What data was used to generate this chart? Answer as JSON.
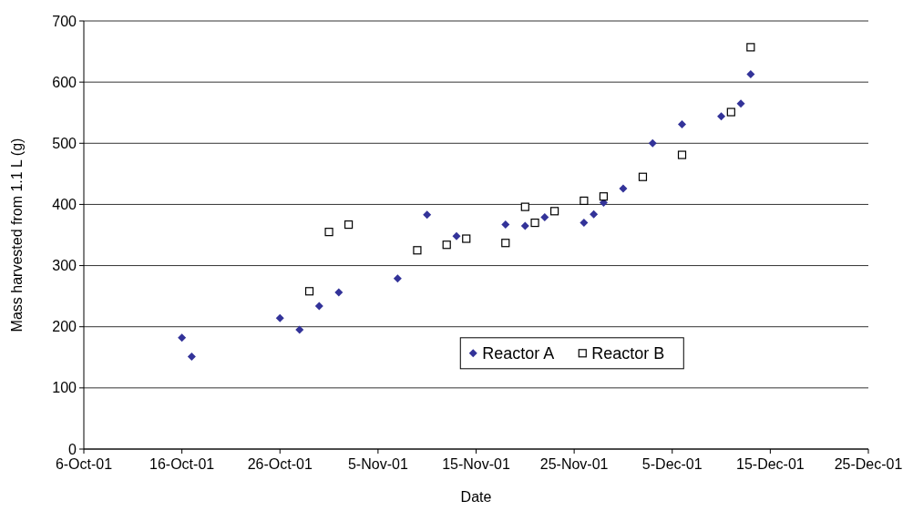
{
  "chart_data": {
    "type": "scatter",
    "xlabel": "Date",
    "ylabel": "Mass harvested from 1.1 L (g)",
    "xlim": [
      "--10-06",
      "--12-25"
    ],
    "xticks": [
      {
        "value": "--10-06",
        "label": "6-Oct-01"
      },
      {
        "value": "--10-16",
        "label": "16-Oct-01"
      },
      {
        "value": "--10-26",
        "label": "26-Oct-01"
      },
      {
        "value": "--11-05",
        "label": "5-Nov-01"
      },
      {
        "value": "--11-15",
        "label": "15-Nov-01"
      },
      {
        "value": "--11-25",
        "label": "25-Nov-01"
      },
      {
        "value": "--12-05",
        "label": "5-Dec-01"
      },
      {
        "value": "--12-15",
        "label": "15-Dec-01"
      },
      {
        "value": "--12-25",
        "label": "25-Dec-01"
      }
    ],
    "ylim": [
      0,
      700
    ],
    "yticks": [
      0,
      100,
      200,
      300,
      400,
      500,
      600,
      700
    ],
    "grid": "y",
    "legend": "bottom",
    "series": [
      {
        "name": "Reactor A",
        "color": "#333399",
        "marker": "diamond",
        "x": [
          "--10-16",
          "--10-17",
          "--10-26",
          "--10-28",
          "--10-30",
          "--11-01",
          "--11-07",
          "--11-10",
          "--11-13",
          "--11-18",
          "--11-20",
          "--11-22",
          "--11-26",
          "--11-27",
          "--11-28",
          "--11-30",
          "--12-03",
          "--12-06",
          "--12-10",
          "--12-12",
          "--12-13"
        ],
        "values": [
          182,
          151,
          214,
          195,
          234,
          256,
          279,
          383,
          348,
          367,
          365,
          379,
          370,
          384,
          403,
          426,
          500,
          531,
          544,
          565,
          613
        ]
      },
      {
        "name": "Reactor B",
        "color": "#000000",
        "marker": "square",
        "x": [
          "--10-29",
          "--10-31",
          "--11-02",
          "--11-09",
          "--11-12",
          "--11-14",
          "--11-18",
          "--11-20",
          "--11-21",
          "--11-23",
          "--11-26",
          "--11-28",
          "--12-02",
          "--12-06",
          "--12-11",
          "--12-13"
        ],
        "values": [
          258,
          355,
          367,
          325,
          334,
          344,
          337,
          396,
          370,
          389,
          406,
          413,
          445,
          481,
          551,
          657
        ]
      }
    ]
  }
}
